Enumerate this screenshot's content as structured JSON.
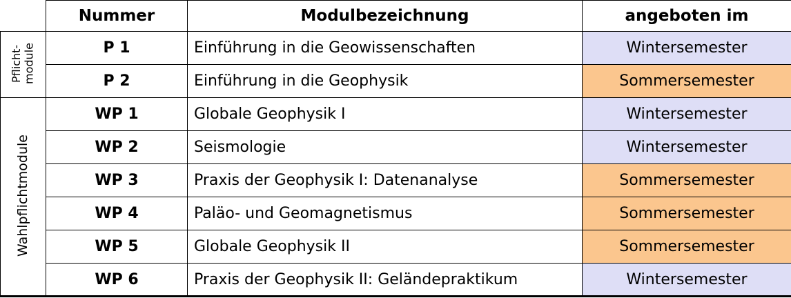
{
  "colors": {
    "pflicht_bg": "#ffff9e",
    "winter_bg": "#dedef6",
    "sommer_bg": "#fbc68e"
  },
  "header": {
    "nummer": "Nummer",
    "modul": "Modulbezeichnung",
    "angeboten": "angeboten im"
  },
  "groups": {
    "pflicht": {
      "line1": "Pflicht-",
      "line2": "module"
    },
    "wahlpflicht": {
      "label": "Wahlpflichtmodule"
    }
  },
  "rows": [
    {
      "group": "pflicht",
      "nummer": "P 1",
      "modul": "Einführung in die Geowissenschaften",
      "semester": "Wintersemester",
      "semester_type": "winter"
    },
    {
      "group": "pflicht",
      "nummer": "P 2",
      "modul": "Einführung in die Geophysik",
      "semester": "Sommersemester",
      "semester_type": "sommer"
    },
    {
      "group": "wahlpflicht",
      "nummer": "WP 1",
      "modul": "Globale Geophysik I",
      "semester": "Wintersemester",
      "semester_type": "winter"
    },
    {
      "group": "wahlpflicht",
      "nummer": "WP 2",
      "modul": "Seismologie",
      "semester": "Wintersemester",
      "semester_type": "winter"
    },
    {
      "group": "wahlpflicht",
      "nummer": "WP 3",
      "modul": "Praxis der Geophysik I: Datenanalyse",
      "semester": "Sommersemester",
      "semester_type": "sommer"
    },
    {
      "group": "wahlpflicht",
      "nummer": "WP 4",
      "modul": "Paläo- und Geomagnetismus",
      "semester": "Sommersemester",
      "semester_type": "sommer"
    },
    {
      "group": "wahlpflicht",
      "nummer": "WP 5",
      "modul": "Globale Geophysik II",
      "semester": "Sommersemester",
      "semester_type": "sommer"
    },
    {
      "group": "wahlpflicht",
      "nummer": "WP 6",
      "modul": "Praxis der Geophysik II: Geländepraktikum",
      "semester": "Wintersemester",
      "semester_type": "winter"
    }
  ]
}
